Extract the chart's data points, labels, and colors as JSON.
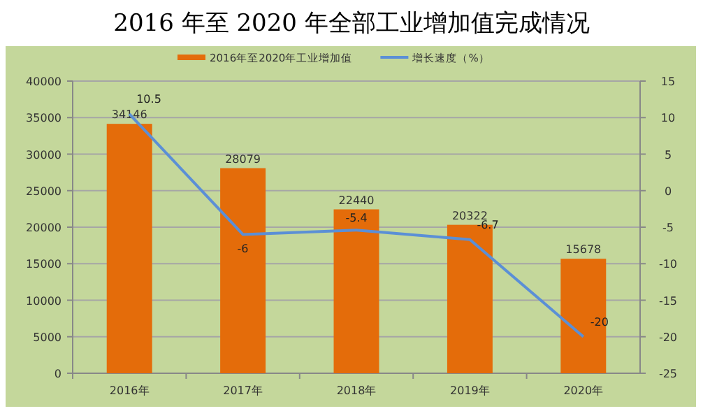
{
  "chart_data": {
    "type": "bar",
    "title": "2016 年至 2020 年全部工业增加值完成情况",
    "categories": [
      "2016年",
      "2017年",
      "2018年",
      "2019年",
      "2020年"
    ],
    "series": [
      {
        "name": "2016年至2020年工业增加值",
        "color": "#e46c0a",
        "values": [
          34146,
          28079,
          22440,
          20322,
          15678
        ]
      },
      {
        "name": "增长速度（%）",
        "type": "line",
        "axis": "y2",
        "color": "#5b8fd6",
        "values": [
          10.5,
          -6,
          -5.4,
          -6.7,
          -20
        ]
      }
    ],
    "ylim": [
      0,
      40000
    ],
    "yticks": [
      0,
      5000,
      10000,
      15000,
      20000,
      25000,
      30000,
      35000,
      40000
    ],
    "y2lim": [
      -25,
      15
    ],
    "y2ticks": [
      -25,
      -20,
      -15,
      -10,
      -5,
      0,
      5,
      10,
      15
    ],
    "grid": "y",
    "legend": "top",
    "data_labels": true
  }
}
